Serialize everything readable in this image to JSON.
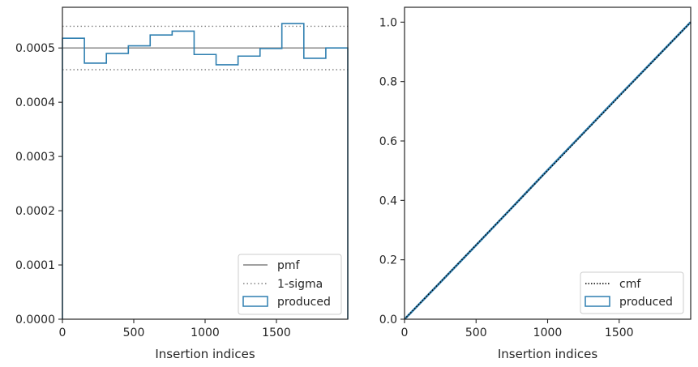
{
  "chart_data": [
    {
      "type": "histogram",
      "xlabel": "Insertion indices",
      "ylabel": "",
      "xlim": [
        0,
        2000
      ],
      "ylim": [
        0,
        0.000575
      ],
      "x_ticks": [
        0,
        500,
        1000,
        1500
      ],
      "x_tick_labels": [
        "0",
        "500",
        "1000",
        "1500"
      ],
      "y_ticks": [
        0,
        0.0001,
        0.0002,
        0.0003,
        0.0004,
        0.0005
      ],
      "y_tick_labels": [
        "0.0000",
        "0.0001",
        "0.0002",
        "0.0003",
        "0.0004",
        "0.0005"
      ],
      "grid": false,
      "legend_position": "lower-right",
      "pmf": {
        "name": "pmf",
        "value": 0.0005,
        "color": "#808080"
      },
      "sigma": {
        "name": "1-sigma",
        "values": [
          0.00046,
          0.00054
        ],
        "color": "#808080"
      },
      "series": [
        {
          "name": "produced",
          "color": "#2f7fb0",
          "bin_edges": [
            0,
            154,
            308,
            462,
            615,
            769,
            923,
            1077,
            1231,
            1385,
            1538,
            1692,
            1846,
            2000
          ],
          "values": [
            0.000518,
            0.000472,
            0.00049,
            0.000504,
            0.000524,
            0.000531,
            0.000488,
            0.000469,
            0.000485,
            0.000499,
            0.000545,
            0.000481,
            0.0005
          ]
        }
      ]
    },
    {
      "type": "line",
      "xlabel": "Insertion indices",
      "ylabel": "",
      "xlim": [
        0,
        2000
      ],
      "ylim": [
        0,
        1.05
      ],
      "x_ticks": [
        0,
        500,
        1000,
        1500
      ],
      "x_tick_labels": [
        "0",
        "500",
        "1000",
        "1500"
      ],
      "y_ticks": [
        0,
        0.2,
        0.4,
        0.6,
        0.8,
        1.0
      ],
      "y_tick_labels": [
        "0.0",
        "0.2",
        "0.4",
        "0.6",
        "0.8",
        "1.0"
      ],
      "grid": false,
      "legend_position": "lower-right",
      "series": [
        {
          "name": "cmf",
          "color": "#000000",
          "x": [
            0,
            2000
          ],
          "y": [
            0,
            1.0
          ]
        },
        {
          "name": "produced",
          "color": "#2f7fb0",
          "x": [
            0,
            250,
            500,
            750,
            1000,
            1250,
            1500,
            1750,
            2000
          ],
          "y": [
            0,
            0.124,
            0.249,
            0.375,
            0.502,
            0.627,
            0.752,
            0.876,
            1.0
          ]
        }
      ]
    }
  ]
}
